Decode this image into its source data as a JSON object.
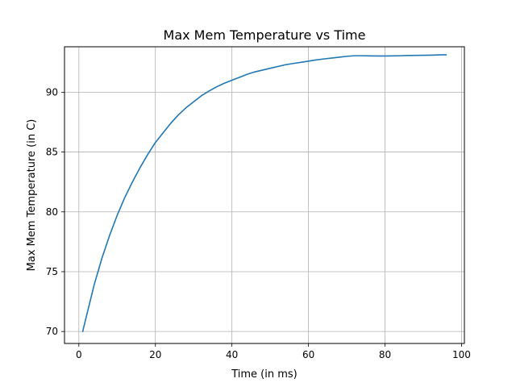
{
  "chart_data": {
    "type": "line",
    "title": "Max Mem Temperature vs Time",
    "xlabel": "Time (in ms)",
    "ylabel": "Max Mem Temperature (in C)",
    "xlim": [
      -3.75,
      100.75
    ],
    "ylim": [
      69.0,
      93.8
    ],
    "xticks": [
      0,
      20,
      40,
      60,
      80,
      100
    ],
    "yticks": [
      70,
      75,
      80,
      85,
      90
    ],
    "grid": true,
    "legend": "none",
    "series": [
      {
        "color": "#1f77b4",
        "x": [
          1,
          2,
          4,
          6,
          8,
          10,
          12,
          14,
          16,
          18,
          20,
          22,
          24,
          26,
          28,
          30,
          32,
          34,
          36,
          38,
          40,
          42,
          44,
          46,
          48,
          50,
          52,
          54,
          56,
          58,
          60,
          62,
          64,
          66,
          68,
          70,
          72,
          74,
          76,
          78,
          80,
          82,
          84,
          86,
          88,
          90,
          92,
          94,
          96
        ],
        "y": [
          70.0,
          71.3,
          73.9,
          76.1,
          78.0,
          79.7,
          81.2,
          82.5,
          83.7,
          84.8,
          85.8,
          86.6,
          87.4,
          88.1,
          88.7,
          89.2,
          89.7,
          90.1,
          90.45,
          90.75,
          91.0,
          91.25,
          91.5,
          91.7,
          91.85,
          92.0,
          92.15,
          92.3,
          92.4,
          92.5,
          92.6,
          92.7,
          92.78,
          92.85,
          92.93,
          93.0,
          93.05,
          93.05,
          93.04,
          93.03,
          93.03,
          93.04,
          93.05,
          93.07,
          93.08,
          93.09,
          93.1,
          93.12,
          93.13
        ]
      }
    ]
  }
}
